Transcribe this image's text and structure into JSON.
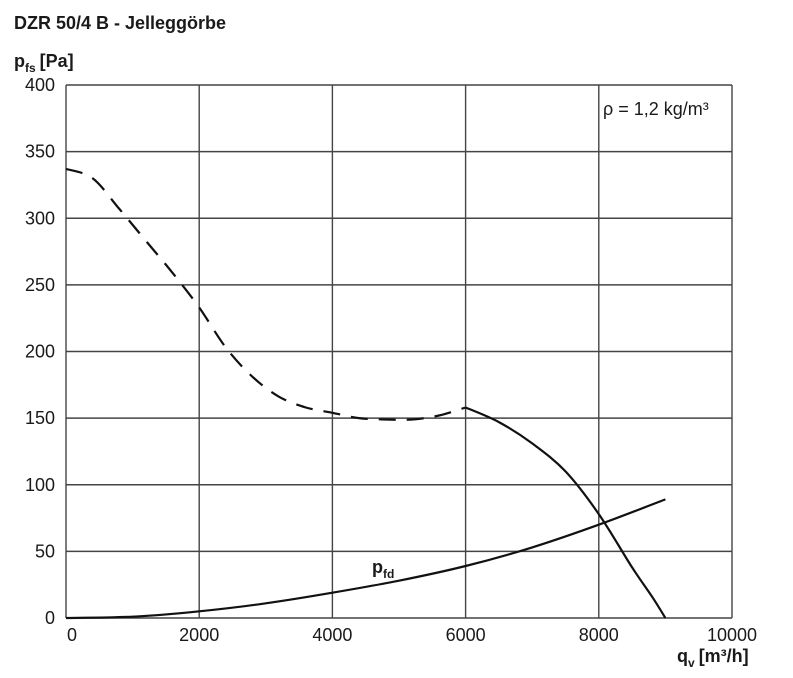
{
  "chart_data": {
    "type": "line",
    "title": "DZR 50/4 B - Jelleggörbe",
    "ylabel": {
      "main": "p",
      "sub": "fs",
      "unit": "[Pa]"
    },
    "xlabel": {
      "main": "q",
      "sub": "v",
      "unit": "[m³/h]"
    },
    "xlim": [
      0,
      10000
    ],
    "ylim": [
      0,
      400
    ],
    "xticks": [
      0,
      2000,
      4000,
      6000,
      8000,
      10000
    ],
    "yticks": [
      0,
      50,
      100,
      150,
      200,
      250,
      300,
      350,
      400
    ],
    "grid": true,
    "annotation": "ρ = 1,2 kg/m³",
    "series": [
      {
        "style": "dashed",
        "x": [
          0,
          400,
          800,
          1200,
          1600,
          2000,
          2400,
          2800,
          3200,
          3600,
          4000,
          4400,
          4800,
          5200,
          5600,
          6000
        ],
        "y": [
          337,
          330,
          307,
          283,
          259,
          233,
          203,
          181,
          166,
          158,
          154,
          150,
          149,
          149,
          152,
          158
        ]
      },
      {
        "style": "solid",
        "x": [
          6000,
          6500,
          7000,
          7500,
          8000,
          8500,
          8800,
          9000
        ],
        "y": [
          158,
          147,
          131,
          110,
          78,
          38,
          16,
          0
        ]
      },
      {
        "name": "p",
        "name_sub": "fd",
        "style": "solid",
        "x": [
          0,
          1000,
          2000,
          3000,
          4000,
          5000,
          6000,
          7000,
          8000,
          9000
        ],
        "y": [
          0,
          1,
          5,
          11,
          19,
          28,
          39,
          53,
          70,
          89
        ]
      }
    ]
  }
}
